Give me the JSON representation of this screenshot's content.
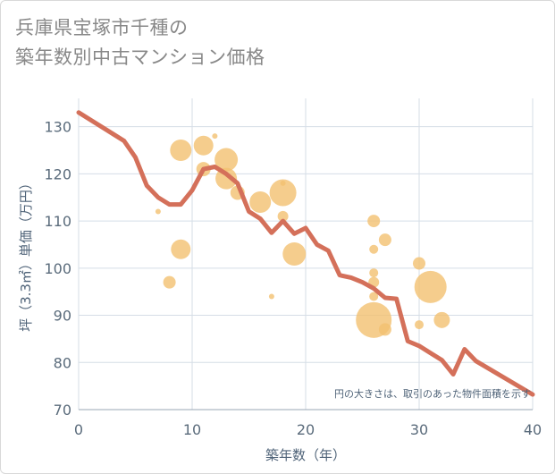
{
  "chart_data": {
    "type": "scatter",
    "title_line1": "兵庫県宝塚市千種の",
    "title_line2": "築年数別中古マンション価格",
    "xlabel": "築年数（年）",
    "ylabel": "坪（3.3㎡）単価（万円）",
    "note": "円の大きさは、取引のあった物件面積を示す",
    "xlim": [
      0,
      40
    ],
    "ylim": [
      70,
      136
    ],
    "x_ticks": [
      0,
      10,
      20,
      30,
      40
    ],
    "y_ticks": [
      70,
      80,
      90,
      100,
      110,
      120,
      130
    ],
    "grid": true,
    "colors": {
      "bubble": "#f2c071",
      "line": "#d4705a",
      "grid": "#d5dde6"
    },
    "points": [
      {
        "x": 7,
        "y": 112,
        "size": 3
      },
      {
        "x": 8,
        "y": 97,
        "size": 7
      },
      {
        "x": 9,
        "y": 125,
        "size": 12
      },
      {
        "x": 9,
        "y": 104,
        "size": 11
      },
      {
        "x": 11,
        "y": 126,
        "size": 11
      },
      {
        "x": 11,
        "y": 121,
        "size": 8
      },
      {
        "x": 12,
        "y": 128,
        "size": 3
      },
      {
        "x": 13,
        "y": 123,
        "size": 13
      },
      {
        "x": 13,
        "y": 119,
        "size": 12
      },
      {
        "x": 14,
        "y": 116,
        "size": 8
      },
      {
        "x": 16,
        "y": 114,
        "size": 12
      },
      {
        "x": 17,
        "y": 94,
        "size": 3
      },
      {
        "x": 18,
        "y": 118,
        "size": 3
      },
      {
        "x": 18,
        "y": 116,
        "size": 15
      },
      {
        "x": 18,
        "y": 111,
        "size": 6
      },
      {
        "x": 19,
        "y": 103,
        "size": 13
      },
      {
        "x": 26,
        "y": 110,
        "size": 7
      },
      {
        "x": 26,
        "y": 104,
        "size": 5
      },
      {
        "x": 26,
        "y": 99,
        "size": 5
      },
      {
        "x": 26,
        "y": 97,
        "size": 6
      },
      {
        "x": 26,
        "y": 94,
        "size": 5
      },
      {
        "x": 26,
        "y": 89,
        "size": 20
      },
      {
        "x": 27,
        "y": 106,
        "size": 7
      },
      {
        "x": 27,
        "y": 87,
        "size": 7
      },
      {
        "x": 30,
        "y": 101,
        "size": 7
      },
      {
        "x": 30,
        "y": 88,
        "size": 5
      },
      {
        "x": 31,
        "y": 96,
        "size": 18
      },
      {
        "x": 32,
        "y": 89,
        "size": 9
      }
    ],
    "trend": [
      {
        "x": 0,
        "y": 133
      },
      {
        "x": 2,
        "y": 130
      },
      {
        "x": 4,
        "y": 127
      },
      {
        "x": 5,
        "y": 123.5
      },
      {
        "x": 6,
        "y": 117.5
      },
      {
        "x": 7,
        "y": 115
      },
      {
        "x": 8,
        "y": 113.5
      },
      {
        "x": 9,
        "y": 113.5
      },
      {
        "x": 10,
        "y": 116.5
      },
      {
        "x": 11,
        "y": 121
      },
      {
        "x": 12,
        "y": 121.5
      },
      {
        "x": 13,
        "y": 120
      },
      {
        "x": 14,
        "y": 118
      },
      {
        "x": 15,
        "y": 112
      },
      {
        "x": 16,
        "y": 110.5
      },
      {
        "x": 17,
        "y": 107.5
      },
      {
        "x": 18,
        "y": 110
      },
      {
        "x": 19,
        "y": 107.3
      },
      {
        "x": 20,
        "y": 108.5
      },
      {
        "x": 21,
        "y": 105
      },
      {
        "x": 22,
        "y": 103.7
      },
      {
        "x": 23,
        "y": 98.5
      },
      {
        "x": 24,
        "y": 98
      },
      {
        "x": 25,
        "y": 97
      },
      {
        "x": 26,
        "y": 95.7
      },
      {
        "x": 27,
        "y": 93.7
      },
      {
        "x": 28,
        "y": 93.5
      },
      {
        "x": 29,
        "y": 84.5
      },
      {
        "x": 30,
        "y": 83.5
      },
      {
        "x": 31,
        "y": 82
      },
      {
        "x": 32,
        "y": 80.5
      },
      {
        "x": 33,
        "y": 77.5
      },
      {
        "x": 34,
        "y": 82.8
      },
      {
        "x": 35,
        "y": 80.3
      },
      {
        "x": 40,
        "y": 73.2
      }
    ]
  }
}
